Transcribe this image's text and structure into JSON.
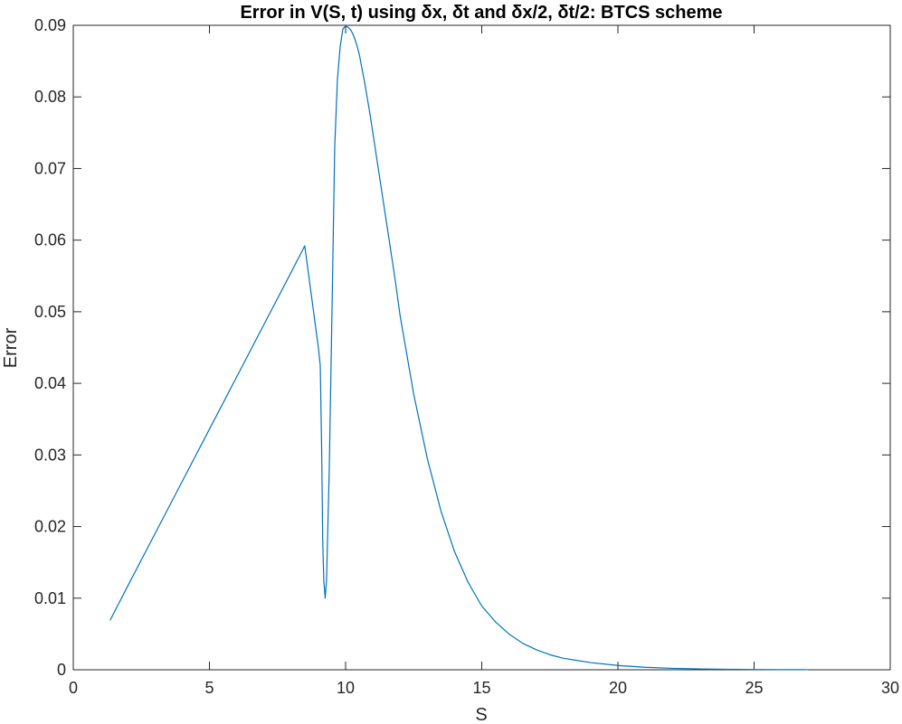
{
  "chart_data": {
    "type": "line",
    "title": "Error in V(S, t) using δx, δt and δx/2, δt/2: BTCS scheme",
    "xlabel": "S",
    "ylabel": "Error",
    "xlim": [
      0,
      30
    ],
    "ylim": [
      0,
      0.09
    ],
    "xticks": [
      "0",
      "5",
      "10",
      "15",
      "20",
      "25",
      "30"
    ],
    "yticks": [
      "0",
      "0.01",
      "0.02",
      "0.03",
      "0.04",
      "0.05",
      "0.06",
      "0.07",
      "0.08",
      "0.09"
    ],
    "grid": false,
    "series": [
      {
        "color": "#0072BD",
        "x": [
          1.35,
          2,
          3,
          4,
          5,
          6,
          7,
          8,
          8.5,
          9.0,
          9.07,
          9.12,
          9.16,
          9.2,
          9.25,
          9.3,
          9.4,
          9.5,
          9.6,
          9.7,
          9.8,
          9.9,
          10.0,
          10.1,
          10.2,
          10.3,
          10.4,
          10.5,
          10.7,
          10.9,
          11.2,
          11.5,
          11.8,
          12.0,
          12.5,
          13.0,
          13.5,
          14.0,
          14.5,
          15.0,
          15.5,
          16.0,
          16.5,
          17.0,
          17.5,
          18.0,
          19.0,
          20.0,
          21.0,
          22.0,
          23.0,
          24.0,
          25.0,
          26.0,
          27.0
        ],
        "y": [
          0.0069,
          0.0117,
          0.019,
          0.0263,
          0.0336,
          0.0409,
          0.0482,
          0.0555,
          0.0592,
          0.045,
          0.0425,
          0.031,
          0.018,
          0.0124,
          0.01,
          0.0125,
          0.028,
          0.05,
          0.073,
          0.0825,
          0.087,
          0.0895,
          0.0899,
          0.0897,
          0.0893,
          0.0885,
          0.0874,
          0.086,
          0.082,
          0.0775,
          0.07,
          0.0625,
          0.055,
          0.0495,
          0.0385,
          0.0295,
          0.0222,
          0.0165,
          0.0122,
          0.0089,
          0.0067,
          0.005,
          0.0037,
          0.0028,
          0.0021,
          0.0016,
          0.001,
          0.0006,
          0.00035,
          0.0002,
          0.00012,
          7e-05,
          4e-05,
          2e-05,
          1e-05
        ]
      }
    ]
  }
}
